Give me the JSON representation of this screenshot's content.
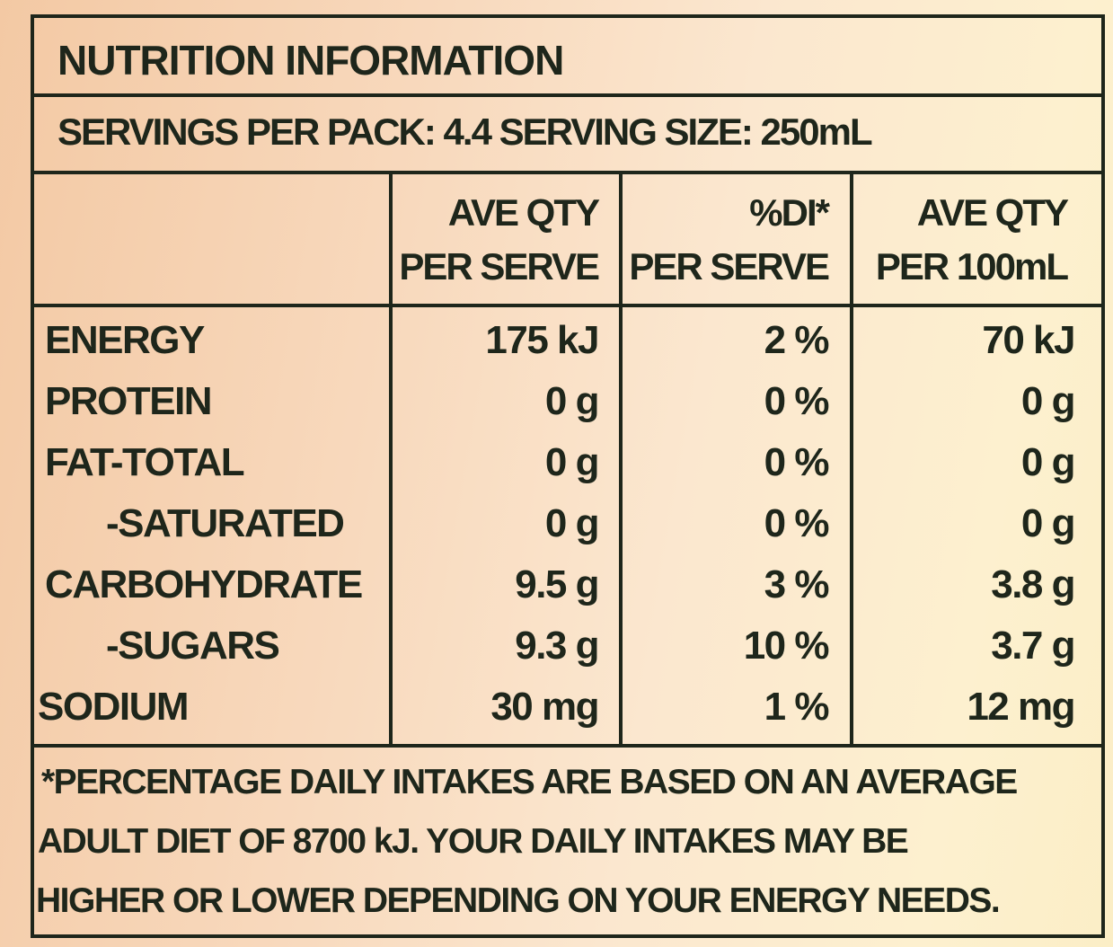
{
  "title": "NUTRITION INFORMATION",
  "servings": "SERVINGS PER PACK: 4.4  SERVING SIZE: 250mL",
  "headers": [
    {
      "line1": "AVE QTY",
      "line2": "PER SERVE"
    },
    {
      "line1": "%DI*",
      "line2": "PER SERVE"
    },
    {
      "line1": "AVE QTY",
      "line2": "PER 100mL"
    }
  ],
  "rows": [
    {
      "name": "ENERGY",
      "per_serve": "175 kJ",
      "di": "2 %",
      "per_100ml": "70 kJ"
    },
    {
      "name": "PROTEIN",
      "per_serve": "0 g",
      "di": "0 %",
      "per_100ml": "0 g"
    },
    {
      "name": "FAT-TOTAL",
      "per_serve": "0 g",
      "di": "0 %",
      "per_100ml": "0 g"
    },
    {
      "name": "-SATURATED",
      "per_serve": "0 g",
      "di": "0 %",
      "per_100ml": "0 g"
    },
    {
      "name": "CARBOHYDRATE",
      "per_serve": "9.5 g",
      "di": "3 %",
      "per_100ml": "3.8 g"
    },
    {
      "name": "-SUGARS",
      "per_serve": "9.3 g",
      "di": "10 %",
      "per_100ml": "3.7 g"
    },
    {
      "name": "SODIUM",
      "per_serve": "30 mg",
      "di": "1 %",
      "per_100ml": "12 mg"
    }
  ],
  "footnote": [
    "*PERCENTAGE DAILY INTAKES ARE BASED ON AN AVERAGE",
    "ADULT DIET OF 8700 kJ. YOUR DAILY INTAKES MAY BE",
    "HIGHER OR LOWER DEPENDING ON YOUR ENERGY NEEDS."
  ],
  "colors": {
    "ink": "#1e261b",
    "background": "#f8d9bd"
  }
}
